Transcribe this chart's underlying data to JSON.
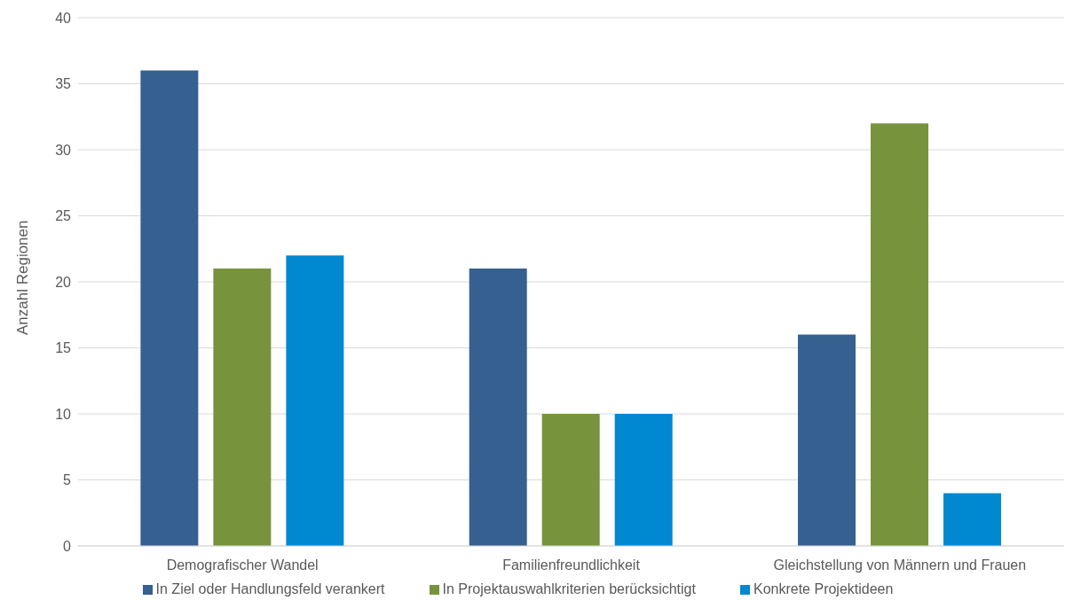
{
  "chart_data": {
    "type": "bar",
    "ylabel": "Anzahl Regionen",
    "categories": [
      "Demografischer Wandel",
      "Familienfreundlichkeit",
      "Gleichstellung von Männern und Frauen"
    ],
    "series": [
      {
        "name": "In Ziel oder Handlungsfeld verankert",
        "color": "#36608f",
        "values": [
          36,
          21,
          16
        ]
      },
      {
        "name": "In Projektauswahlkriterien berücksichtigt",
        "color": "#77933c",
        "values": [
          21,
          10,
          32
        ]
      },
      {
        "name": "Konkrete Projektideen",
        "color": "#0088d1",
        "values": [
          22,
          10,
          4
        ]
      }
    ],
    "ylim": [
      0,
      40
    ],
    "yticks": [
      0,
      5,
      10,
      15,
      20,
      25,
      30,
      35,
      40
    ],
    "grid": "y",
    "legend": "bottom"
  }
}
